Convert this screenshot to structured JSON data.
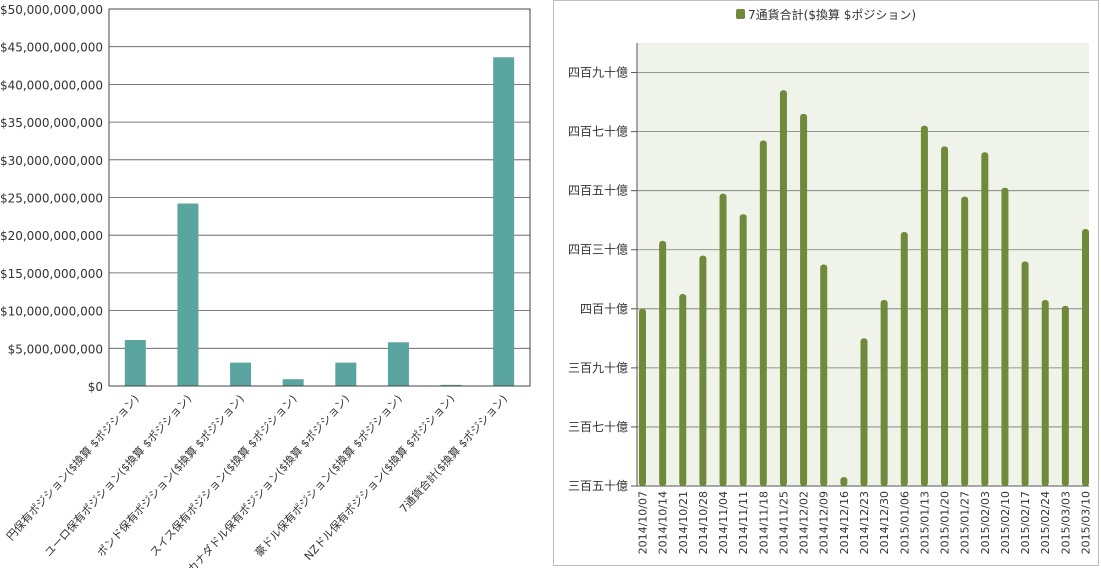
{
  "chart_data": [
    {
      "type": "bar",
      "categories": [
        "円保有ポジション($換算 $ポジション)",
        "ユーロ保有ポジション($換算 $ポジション)",
        "ポンド保有ポジション($換算 $ポジション)",
        "スイス保有ポジション($換算 $ポジション)",
        "カナダドル保有ポジション($換算 $ポジション)",
        "豪ドル保有ポジション($換算 $ポジション)",
        "NZドル保有ポジション($換算 $ポジション)",
        "7通貨合計($換算 $ポジション)"
      ],
      "values": [
        6100000000,
        24200000000,
        3100000000,
        900000000,
        3100000000,
        5800000000,
        150000000,
        43600000000
      ],
      "ylim": [
        0,
        50000000000
      ],
      "yticks": [
        0,
        5000000000,
        10000000000,
        15000000000,
        20000000000,
        25000000000,
        30000000000,
        35000000000,
        40000000000,
        45000000000,
        50000000000
      ],
      "ytick_labels": [
        "$0",
        "$5,000,000,000",
        "$10,000,000,000",
        "$15,000,000,000",
        "$20,000,000,000",
        "$25,000,000,000",
        "$30,000,000,000",
        "$35,000,000,000",
        "$40,000,000,000",
        "$45,000,000,000",
        "$50,000,000,000"
      ],
      "grid": true,
      "color": "#5aa5a0"
    },
    {
      "type": "bar",
      "legend": [
        "7通貨合計($換算 $ポジション)"
      ],
      "legend_position": "top",
      "categories": [
        "2014/10/07",
        "2014/10/14",
        "2014/10/21",
        "2014/10/28",
        "2014/11/04",
        "2014/11/11",
        "2014/11/18",
        "2014/11/25",
        "2014/12/02",
        "2014/12/09",
        "2014/12/16",
        "2014/12/23",
        "2014/12/30",
        "2015/01/06",
        "2015/01/13",
        "2015/01/20",
        "2015/01/27",
        "2015/02/03",
        "2015/02/10",
        "2015/02/17",
        "2015/02/24",
        "2015/03/03",
        "2015/03/10"
      ],
      "values": [
        41000000000,
        43300000000,
        41500000000,
        42800000000,
        44900000000,
        44200000000,
        46700000000,
        48400000000,
        47600000000,
        42500000000,
        35300000000,
        40000000000,
        41300000000,
        43600000000,
        47200000000,
        46500000000,
        44800000000,
        46300000000,
        45100000000,
        42600000000,
        41300000000,
        41100000000,
        43700000000
      ],
      "ylim": [
        35000000000,
        50000000000
      ],
      "yticks": [
        35000000000,
        37000000000,
        39000000000,
        41000000000,
        43000000000,
        45000000000,
        47000000000,
        49000000000
      ],
      "ytick_labels": [
        "三百五十億",
        "三百七十億",
        "三百九十億",
        "四百十億",
        "四百三十億",
        "四百五十億",
        "四百七十億",
        "四百九十億"
      ],
      "grid": true,
      "color": "#6f8a3a"
    }
  ]
}
